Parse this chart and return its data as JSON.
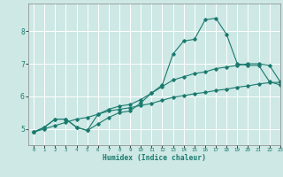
{
  "title": "",
  "xlabel": "Humidex (Indice chaleur)",
  "background_color": "#cde8e5",
  "grid_color": "#ffffff",
  "line_color": "#1a7a6e",
  "xlim": [
    -0.5,
    23
  ],
  "ylim": [
    4.5,
    8.85
  ],
  "yticks": [
    5,
    6,
    7,
    8
  ],
  "xticks": [
    0,
    1,
    2,
    3,
    4,
    5,
    6,
    7,
    8,
    9,
    10,
    11,
    12,
    13,
    14,
    15,
    16,
    17,
    18,
    19,
    20,
    21,
    22,
    23
  ],
  "line1_x": [
    0,
    1,
    2,
    3,
    4,
    5,
    6,
    7,
    8,
    9,
    10,
    11,
    12,
    13,
    14,
    15,
    16,
    17,
    18,
    19,
    20,
    21,
    22,
    23
  ],
  "line1_y": [
    4.9,
    5.05,
    5.3,
    5.3,
    5.05,
    4.95,
    5.15,
    5.35,
    5.5,
    5.55,
    5.8,
    6.1,
    6.35,
    7.3,
    7.7,
    7.75,
    8.35,
    8.4,
    7.9,
    7.0,
    6.95,
    6.95,
    6.45,
    6.35
  ],
  "line2_x": [
    0,
    1,
    2,
    3,
    4,
    5,
    6,
    7,
    8,
    9,
    10,
    11,
    12,
    13,
    14,
    15,
    16,
    17,
    18,
    19,
    20,
    21,
    22,
    23
  ],
  "line2_y": [
    4.9,
    5.05,
    5.3,
    5.3,
    5.05,
    4.95,
    5.45,
    5.6,
    5.7,
    5.75,
    5.9,
    6.1,
    6.3,
    6.5,
    6.6,
    6.7,
    6.75,
    6.85,
    6.9,
    6.95,
    7.0,
    7.0,
    6.95,
    6.45
  ],
  "line3_x": [
    0,
    1,
    2,
    3,
    4,
    5,
    6,
    7,
    8,
    9,
    10,
    11,
    12,
    13,
    14,
    15,
    16,
    17,
    18,
    19,
    20,
    21,
    22,
    23
  ],
  "line3_y": [
    4.9,
    5.0,
    5.1,
    5.2,
    5.3,
    5.35,
    5.45,
    5.55,
    5.6,
    5.65,
    5.72,
    5.78,
    5.88,
    5.97,
    6.02,
    6.08,
    6.12,
    6.18,
    6.22,
    6.28,
    6.32,
    6.38,
    6.42,
    6.43
  ]
}
